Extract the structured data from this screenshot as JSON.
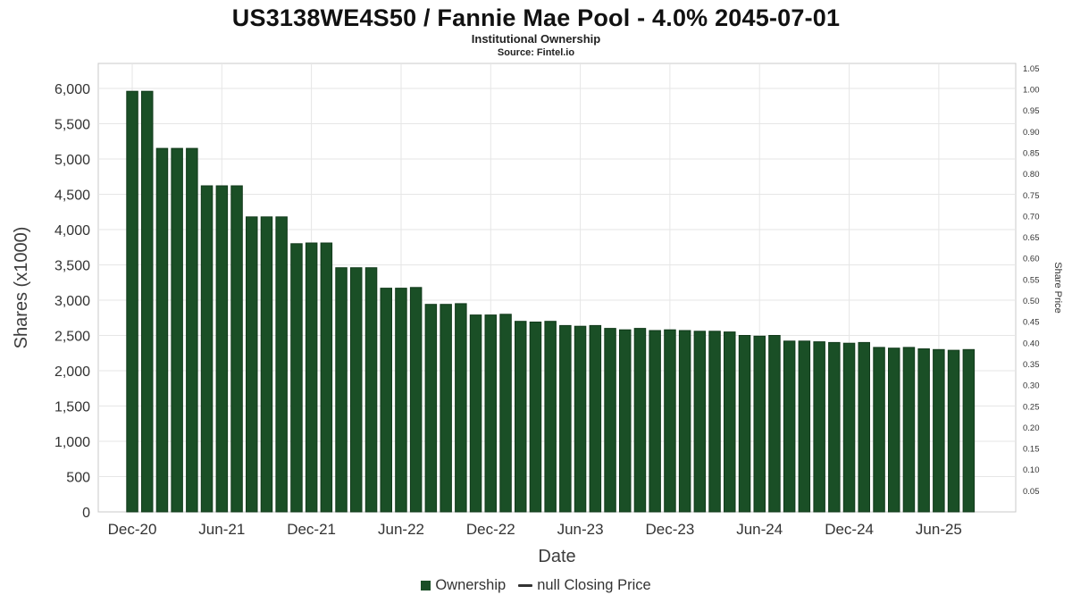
{
  "header": {
    "title": "US3138WE4S50 / Fannie Mae Pool - 4.0% 2045-07-01",
    "subtitle": "Institutional Ownership",
    "source": "Source: Fintel.io"
  },
  "legend": {
    "ownership_label": "Ownership",
    "closing_label": "null Closing Price"
  },
  "chart_data": {
    "type": "bar",
    "title": "US3138WE4S50 / Fannie Mae Pool - 4.0% 2045-07-01",
    "subtitle": "Institutional Ownership",
    "source": "Source: Fintel.io",
    "xlabel": "Date",
    "ylabel": "Shares (x1000)",
    "ylabel_right": "Share Price",
    "ylim": [
      0,
      6000
    ],
    "ytick_step": 500,
    "ylim_right": [
      0,
      1.05
    ],
    "ytick_step_right": 0.05,
    "grid": true,
    "legend_position": "bottom",
    "bar_color": "#1a4f26",
    "bar_edge_color": "#123a1b",
    "grid_color": "#e6e6e6",
    "frame_color": "#c8c8c8",
    "x_tick_labels": [
      "Dec-20",
      "Jun-21",
      "Dec-21",
      "Jun-22",
      "Dec-22",
      "Jun-23",
      "Dec-23",
      "Jun-24",
      "Dec-24",
      "Jun-25"
    ],
    "x_tick_indices": [
      0,
      6,
      12,
      18,
      24,
      30,
      36,
      42,
      48,
      54
    ],
    "categories": [
      "Dec-20",
      "Jan-21",
      "Feb-21",
      "Mar-21",
      "Apr-21",
      "May-21",
      "Jun-21",
      "Jul-21",
      "Aug-21",
      "Sep-21",
      "Oct-21",
      "Nov-21",
      "Dec-21",
      "Jan-22",
      "Feb-22",
      "Mar-22",
      "Apr-22",
      "May-22",
      "Jun-22",
      "Jul-22",
      "Aug-22",
      "Sep-22",
      "Oct-22",
      "Nov-22",
      "Dec-22",
      "Jan-23",
      "Feb-23",
      "Mar-23",
      "Apr-23",
      "May-23",
      "Jun-23",
      "Jul-23",
      "Aug-23",
      "Sep-23",
      "Oct-23",
      "Nov-23",
      "Dec-23",
      "Jan-24",
      "Feb-24",
      "Mar-24",
      "Apr-24",
      "May-24",
      "Jun-24",
      "Jul-24",
      "Aug-24",
      "Sep-24",
      "Oct-24",
      "Nov-24",
      "Dec-24",
      "Jan-25",
      "Feb-25",
      "Mar-25",
      "Apr-25",
      "May-25",
      "Jun-25",
      "Jul-25",
      "Aug-25"
    ],
    "values": [
      5960,
      5960,
      5150,
      5150,
      5150,
      4620,
      4620,
      4620,
      4180,
      4180,
      4180,
      3800,
      3810,
      3810,
      3460,
      3460,
      3460,
      3170,
      3170,
      3180,
      2940,
      2940,
      2950,
      2790,
      2790,
      2800,
      2700,
      2690,
      2700,
      2640,
      2630,
      2640,
      2600,
      2580,
      2600,
      2570,
      2580,
      2570,
      2560,
      2560,
      2550,
      2500,
      2490,
      2500,
      2420,
      2420,
      2410,
      2400,
      2390,
      2400,
      2330,
      2320,
      2330,
      2310,
      2300,
      2290,
      2300
    ],
    "series": [
      {
        "name": "Ownership",
        "type": "bar",
        "color": "#1a4f26"
      },
      {
        "name": "null Closing Price",
        "type": "line",
        "color": "#333333",
        "values_visible": false
      }
    ]
  }
}
